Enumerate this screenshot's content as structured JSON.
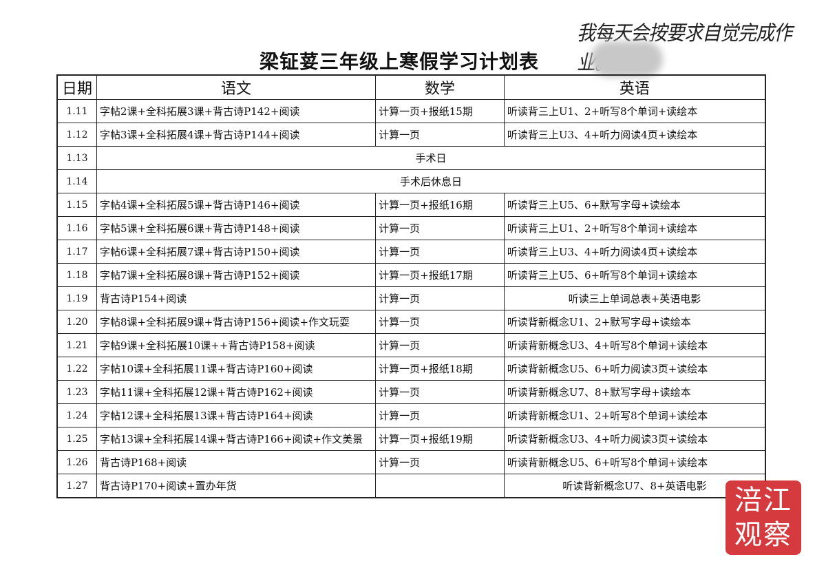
{
  "handwritten_note": "我每天会按要求自觉完成作业。",
  "title": "梁钲荽三年级上寒假学习计划表",
  "headers": [
    "日期",
    "语文",
    "数学",
    "英语"
  ],
  "rows": [
    {
      "date": "1.11",
      "chinese": "字帖2课+全科拓展3课+背古诗P142+阅读",
      "math": "计算一页+报纸15期",
      "english": "听读背三上U1、2+听写8个单词+读绘本"
    },
    {
      "date": "1.12",
      "chinese": "字帖3课+全科拓展4课+背古诗P144+阅读",
      "math": "计算一页",
      "english": "听读背三上U3、4+听力阅读4页+读绘本"
    },
    {
      "date": "1.13",
      "merged": "手术日"
    },
    {
      "date": "1.14",
      "merged": "手术后休息日"
    },
    {
      "date": "1.15",
      "chinese": "字帖4课+全科拓展5课+背古诗P146+阅读",
      "math": "计算一页+报纸16期",
      "english": "听读背三上U5、6+默写字母+读绘本"
    },
    {
      "date": "1.16",
      "chinese": "字帖5课+全科拓展6课+背古诗P148+阅读",
      "math": "计算一页",
      "english": "听读背三上U1、2+听写8个单词+读绘本"
    },
    {
      "date": "1.17",
      "chinese": "字帖6课+全科拓展7课+背古诗P150+阅读",
      "math": "计算一页",
      "english": "听读背三上U3、4+听力阅读4页+读绘本"
    },
    {
      "date": "1.18",
      "chinese": "字帖7课+全科拓展8课+背古诗P152+阅读",
      "math": "计算一页+报纸17期",
      "english": "听读背三上U5、6+听写8个单词+读绘本"
    },
    {
      "date": "1.19",
      "chinese": "背古诗P154+阅读",
      "math": "计算一页",
      "english": "听读三上单词总表+英语电影",
      "english_center": true
    },
    {
      "date": "1.20",
      "chinese": "字帖8课+全科拓展9课+背古诗P156+阅读+作文玩耍",
      "math": "计算一页",
      "english": "听读背新概念U1、2+默写字母+读绘本"
    },
    {
      "date": "1.21",
      "chinese": "字帖9课+全科拓展10课++背古诗P158+阅读",
      "math": "计算一页",
      "english": "听读背新概念U3、4+听写8个单词+读绘本"
    },
    {
      "date": "1.22",
      "chinese": "字帖10课+全科拓展11课+背古诗P160+阅读",
      "math": "计算一页+报纸18期",
      "english": "听读背新概念U5、6+听力阅读3页+读绘本"
    },
    {
      "date": "1.23",
      "chinese": "字帖11课+全科拓展12课+背古诗P162+阅读",
      "math": "计算一页",
      "english": "听读背新概念U7、8+默写字母+读绘本"
    },
    {
      "date": "1.24",
      "chinese": "字帖12课+全科拓展13课+背古诗P164+阅读",
      "math": "计算一页",
      "english": "听读背新概念U1、2+听写8个单词+读绘本"
    },
    {
      "date": "1.25",
      "chinese": "字帖13课+全科拓展14课+背古诗P166+阅读+作文美景",
      "math": "计算一页+报纸19期",
      "english": "听读背新概念U3、4+听力阅读3页+读绘本"
    },
    {
      "date": "1.26",
      "chinese": "背古诗P168+阅读",
      "math": "计算一页",
      "english": "听读背新概念U5、6+听写8个单词+读绘本"
    },
    {
      "date": "1.27",
      "chinese": "背古诗P170+阅读+置办年货",
      "math": "",
      "english": "听读背新概念U7、8+英语电影",
      "english_center": true
    }
  ],
  "watermark": {
    "line1": "涪江",
    "line2": "观察",
    "color": "#d53a3f"
  }
}
